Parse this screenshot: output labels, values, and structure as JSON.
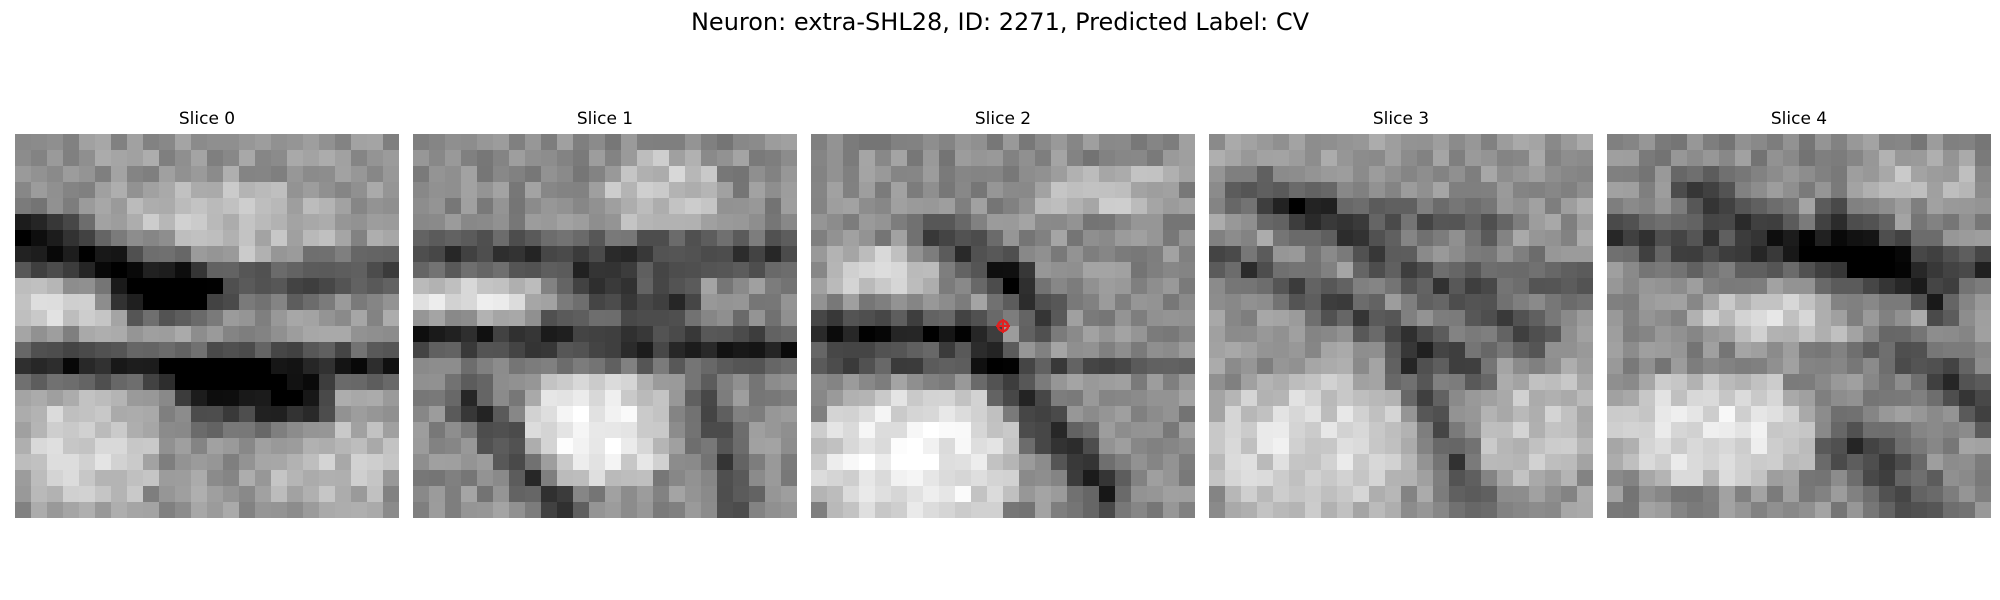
{
  "figure": {
    "title": "Neuron: extra-SHL28, ID: 2271, Predicted Label: CV"
  },
  "slices": [
    {
      "title": "Slice 0"
    },
    {
      "title": "Slice 1"
    },
    {
      "title": "Slice 2",
      "has_marker": true
    },
    {
      "title": "Slice 3"
    },
    {
      "title": "Slice 4"
    }
  ],
  "colors": {
    "background": "#ffffff",
    "marker": "#e02020",
    "colormap": "gray"
  },
  "marker": {
    "icon": "red-crosshair-marker-icon"
  }
}
